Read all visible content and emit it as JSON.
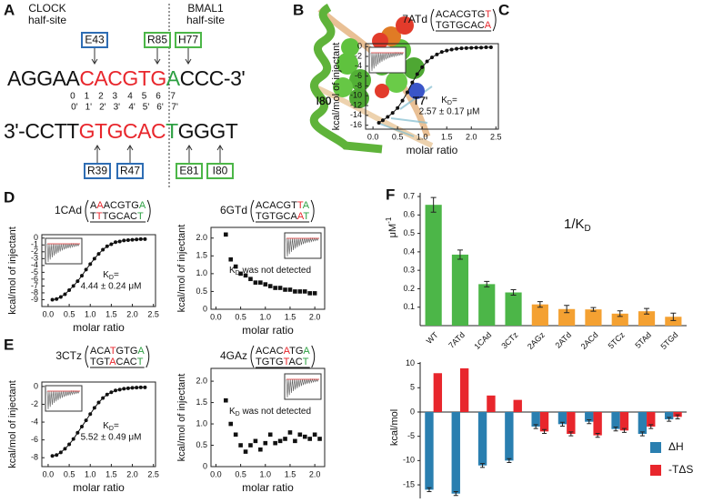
{
  "panel_labels": [
    "A",
    "B",
    "C",
    "D",
    "E",
    "F"
  ],
  "panel_a": {
    "clock": [
      "CLOCK",
      "half-site"
    ],
    "bmal": [
      "BMAL1",
      "half-site"
    ],
    "top_strand": [
      {
        "text": "AGGAA",
        "color": "#111111"
      },
      {
        "text": "CAC",
        "color": "#e8262c"
      },
      {
        "text": "GTG",
        "color": "#e8262c"
      },
      {
        "text": "A",
        "color": "#2ea043"
      },
      {
        "text": "CCC",
        "color": "#111111"
      },
      {
        "text": "-3'",
        "color": "#111111"
      }
    ],
    "bottom_strand": [
      {
        "text": "3'-",
        "color": "#111111"
      },
      {
        "text": "CCTT",
        "color": "#111111"
      },
      {
        "text": "GTG",
        "color": "#e8262c"
      },
      {
        "text": "CAC",
        "color": "#e8262c"
      },
      {
        "text": "T",
        "color": "#2ea043"
      },
      {
        "text": "GGGT",
        "color": "#111111"
      }
    ],
    "numbers": [
      "0",
      "1",
      "2",
      "3",
      "4",
      "5",
      "6",
      "7"
    ],
    "numbers_prime": [
      "0'",
      "1'",
      "2'",
      "3'",
      "4'",
      "5'",
      "6'",
      "7'"
    ],
    "top_residues": [
      {
        "label": "E43",
        "color": "#2e6db4"
      },
      {
        "label": "R85",
        "color": "#4cb648"
      },
      {
        "label": "H77",
        "color": "#4cb648"
      }
    ],
    "bottom_residues": [
      {
        "label": "R39",
        "color": "#2e6db4"
      },
      {
        "label": "R47",
        "color": "#2e6db4"
      },
      {
        "label": "E81",
        "color": "#4cb648"
      },
      {
        "label": "I80",
        "color": "#4cb648"
      }
    ]
  },
  "panel_b": {
    "labels": [
      "I80",
      "T7'"
    ]
  },
  "chart_data": [
    {
      "type": "scatter",
      "title": "7ATd",
      "seq_top": [
        {
          "text": "ACACGTG",
          "color": "#111111"
        },
        {
          "text": "T",
          "color": "#e8262c"
        }
      ],
      "seq_bottom": [
        {
          "text": "TGTGCAC",
          "color": "#111111"
        },
        {
          "text": "A",
          "color": "#e8262c"
        }
      ],
      "xlabel": "molar ratio",
      "ylabel": "kcal/mol of injectant",
      "marker": "circle",
      "line": true,
      "color": "#111111",
      "x": [
        0.12,
        0.2,
        0.3,
        0.4,
        0.5,
        0.6,
        0.7,
        0.8,
        0.9,
        1.0,
        1.1,
        1.2,
        1.3,
        1.4,
        1.5,
        1.6,
        1.7,
        1.8,
        1.9,
        2.0,
        2.1,
        2.2,
        2.3,
        2.4
      ],
      "values": [
        -15.5,
        -15,
        -14.3,
        -13.5,
        -12.5,
        -11,
        -9.3,
        -7.3,
        -5.6,
        -4.2,
        -3,
        -2.2,
        -1.6,
        -1.1,
        -0.8,
        -0.6,
        -0.45,
        -0.35,
        -0.3,
        -0.25,
        -0.2,
        -0.2,
        -0.15,
        -0.15
      ],
      "xlim": [
        -0.15,
        2.55
      ],
      "ylim": [
        -16.8,
        0.6
      ],
      "xticks": [
        {
          "value": 0,
          "label": "0.0"
        },
        0.5,
        {
          "value": 1,
          "label": "1.0"
        },
        1.5,
        {
          "value": 2,
          "label": "2.0"
        },
        2.5
      ],
      "yticks": [
        0,
        -2,
        -4,
        -6,
        -8,
        -10,
        -12,
        -14,
        -16
      ],
      "annotation": {
        "k": "K",
        "sub": "D",
        "text": "=",
        "value": "2.57 ± 0.17 μM"
      }
    },
    {
      "type": "scatter",
      "title": "1CAd",
      "seq_top": [
        {
          "text": "A",
          "color": "#111111"
        },
        {
          "text": "A",
          "color": "#e8262c"
        },
        {
          "text": "ACGTG",
          "color": "#111111"
        },
        {
          "text": "A",
          "color": "#2ea043"
        }
      ],
      "seq_bottom": [
        {
          "text": "T",
          "color": "#111111"
        },
        {
          "text": "T",
          "color": "#e8262c"
        },
        {
          "text": "TGCAC",
          "color": "#111111"
        },
        {
          "text": "T",
          "color": "#2ea043"
        }
      ],
      "xlabel": "molar ratio",
      "ylabel": "kcal/mol of injectant",
      "marker": "circle",
      "line": true,
      "color": "#111111",
      "x": [
        0.1,
        0.2,
        0.3,
        0.4,
        0.5,
        0.6,
        0.7,
        0.8,
        0.9,
        1.0,
        1.1,
        1.2,
        1.3,
        1.4,
        1.5,
        1.6,
        1.7,
        1.8,
        1.9,
        2.0,
        2.1,
        2.2,
        2.3
      ],
      "values": [
        -9,
        -8.9,
        -8.6,
        -8.2,
        -7.6,
        -7,
        -6.3,
        -5.5,
        -4.6,
        -3.8,
        -3,
        -2.3,
        -1.7,
        -1.2,
        -0.9,
        -0.6,
        -0.5,
        -0.35,
        -0.3,
        -0.25,
        -0.2,
        -0.15,
        -0.15
      ],
      "xlim": [
        -0.15,
        2.55
      ],
      "ylim": [
        -10,
        0.5
      ],
      "xticks": [
        {
          "value": 0,
          "label": "0.0"
        },
        0.5,
        {
          "value": 1,
          "label": "1.0"
        },
        1.5,
        {
          "value": 2,
          "label": "2.0"
        },
        2.5
      ],
      "yticks": [
        0,
        -1,
        -2,
        -3,
        -4,
        -5,
        -6,
        -7,
        -8,
        -9
      ],
      "annotation": {
        "k": "K",
        "sub": "D",
        "text": "=",
        "value": "4.44 ± 0.24 μM"
      }
    },
    {
      "type": "scatter",
      "title": "6GTd",
      "seq_top": [
        {
          "text": "ACACGT",
          "color": "#111111"
        },
        {
          "text": "T",
          "color": "#e8262c"
        },
        {
          "text": "A",
          "color": "#2ea043"
        }
      ],
      "seq_bottom": [
        {
          "text": "TGTGCA",
          "color": "#111111"
        },
        {
          "text": "A",
          "color": "#e8262c"
        },
        {
          "text": "T",
          "color": "#2ea043"
        }
      ],
      "xlabel": "molar ratio",
      "ylabel": "kcal/mol of injectant",
      "marker": "square",
      "line": false,
      "color": "#111111",
      "x": [
        0.2,
        0.3,
        0.4,
        0.5,
        0.6,
        0.7,
        0.8,
        0.9,
        1.0,
        1.1,
        1.2,
        1.3,
        1.4,
        1.5,
        1.6,
        1.7,
        1.8,
        1.9,
        2.0
      ],
      "values": [
        2.1,
        1.4,
        1.2,
        1.0,
        0.95,
        0.85,
        0.75,
        0.75,
        0.7,
        0.65,
        0.6,
        0.6,
        0.55,
        0.55,
        0.5,
        0.5,
        0.5,
        0.45,
        0.45
      ],
      "xlim": [
        -0.1,
        2.2
      ],
      "ylim": [
        0,
        2.3
      ],
      "xticks": [
        {
          "value": 0,
          "label": "0.0"
        },
        0.5,
        {
          "value": 1,
          "label": "1.0"
        },
        1.5,
        {
          "value": 2,
          "label": "2.0"
        }
      ],
      "yticks": [
        0,
        0.5,
        {
          "value": 1,
          "label": "1.0"
        },
        1.5,
        {
          "value": 2,
          "label": "2.0"
        }
      ],
      "annotation": {
        "k": "K",
        "sub": "D",
        "text": " was not detected"
      }
    },
    {
      "type": "scatter",
      "title": "3CTz",
      "seq_top": [
        {
          "text": "ACA",
          "color": "#111111"
        },
        {
          "text": "T",
          "color": "#e8262c"
        },
        {
          "text": "GTG",
          "color": "#111111"
        },
        {
          "text": "A",
          "color": "#2ea043"
        }
      ],
      "seq_bottom": [
        {
          "text": "TGT",
          "color": "#111111"
        },
        {
          "text": "A",
          "color": "#e8262c"
        },
        {
          "text": "CAC",
          "color": "#111111"
        },
        {
          "text": "T",
          "color": "#2ea043"
        }
      ],
      "xlabel": "molar ratio",
      "ylabel": "kcal/mol of injectant",
      "marker": "circle",
      "line": true,
      "color": "#111111",
      "x": [
        0.1,
        0.2,
        0.3,
        0.4,
        0.5,
        0.6,
        0.7,
        0.8,
        0.9,
        1.0,
        1.1,
        1.2,
        1.3,
        1.4,
        1.5,
        1.6,
        1.7,
        1.8,
        1.9,
        2.0,
        2.1,
        2.2,
        2.3
      ],
      "values": [
        -7.8,
        -7.7,
        -7.4,
        -7,
        -6.5,
        -5.9,
        -5.2,
        -4.5,
        -3.8,
        -3.1,
        -2.4,
        -1.8,
        -1.3,
        -0.9,
        -0.65,
        -0.45,
        -0.35,
        -0.25,
        -0.2,
        -0.15,
        -0.12,
        -0.1,
        -0.1
      ],
      "xlim": [
        -0.15,
        2.55
      ],
      "ylim": [
        -9,
        0.5
      ],
      "xticks": [
        {
          "value": 0,
          "label": "0.0"
        },
        0.5,
        {
          "value": 1,
          "label": "1.0"
        },
        1.5,
        {
          "value": 2,
          "label": "2.0"
        },
        2.5
      ],
      "yticks": [
        0,
        -2,
        -4,
        -6,
        -8
      ],
      "annotation": {
        "k": "K",
        "sub": "D",
        "text": "=",
        "value": "5.52 ± 0.49 μM"
      }
    },
    {
      "type": "scatter",
      "title": "4GAz",
      "seq_top": [
        {
          "text": "ACAC",
          "color": "#111111"
        },
        {
          "text": "A",
          "color": "#e8262c"
        },
        {
          "text": "TG",
          "color": "#111111"
        },
        {
          "text": "A",
          "color": "#2ea043"
        }
      ],
      "seq_bottom": [
        {
          "text": "TGTG",
          "color": "#111111"
        },
        {
          "text": "T",
          "color": "#e8262c"
        },
        {
          "text": "AC",
          "color": "#111111"
        },
        {
          "text": "T",
          "color": "#2ea043"
        }
      ],
      "xlabel": "molar ratio",
      "ylabel": "kcal/mol of injectant",
      "marker": "square",
      "line": false,
      "color": "#111111",
      "x": [
        0.2,
        0.3,
        0.4,
        0.5,
        0.6,
        0.7,
        0.8,
        0.9,
        1.0,
        1.1,
        1.2,
        1.3,
        1.4,
        1.5,
        1.6,
        1.7,
        1.8,
        1.9,
        2.0,
        2.1
      ],
      "values": [
        1.55,
        1.0,
        0.75,
        0.5,
        0.35,
        0.5,
        0.6,
        0.4,
        0.55,
        0.75,
        0.55,
        0.6,
        0.65,
        0.8,
        0.6,
        0.75,
        0.7,
        0.65,
        0.75,
        0.65
      ],
      "xlim": [
        -0.1,
        2.2
      ],
      "ylim": [
        0,
        2.3
      ],
      "xticks": [
        {
          "value": 0,
          "label": "0.0"
        },
        0.5,
        {
          "value": 1,
          "label": "1.0"
        },
        1.5,
        {
          "value": 2,
          "label": "2.0"
        }
      ],
      "yticks": [
        0,
        0.5,
        {
          "value": 1,
          "label": "1.0"
        },
        1.5,
        {
          "value": 2,
          "label": "2.0"
        }
      ],
      "annotation": {
        "k": "K",
        "sub": "D",
        "text": " was not detected"
      }
    },
    {
      "type": "bar",
      "title": "1/K",
      "title_sub": "D",
      "ylabel": "μM",
      "ylabel_sup": "-1",
      "categories": [
        "WT",
        "7ATd",
        "1CAd",
        "3CTz",
        "2AGz",
        "2ATd",
        "2ACd",
        "5TCz",
        "5TAd",
        "5TGd"
      ],
      "values": [
        0.655,
        0.385,
        0.225,
        0.18,
        0.115,
        0.09,
        0.088,
        0.065,
        0.078,
        0.048
      ],
      "errors": [
        0.04,
        0.025,
        0.015,
        0.015,
        0.015,
        0.02,
        0.01,
        0.015,
        0.015,
        0.02
      ],
      "colors": [
        "#4cb648",
        "#4cb648",
        "#4cb648",
        "#4cb648",
        "#f4a132",
        "#f4a132",
        "#f4a132",
        "#f4a132",
        "#f4a132",
        "#f4a132"
      ],
      "ylim": [
        0,
        0.72
      ],
      "yticks": [
        0.1,
        0.2,
        0.3,
        0.4,
        0.5,
        0.6,
        0.7
      ]
    },
    {
      "type": "grouped_bar",
      "ylabel": "kcal/mol",
      "legend": "lower right",
      "categories": [
        "WT",
        "7ATd",
        "1CAd",
        "3CTz",
        "2AGz",
        "2ATd",
        "2ACd",
        "5TCz",
        "5TAd",
        "5TGd"
      ],
      "series": [
        {
          "name": "ΔH",
          "color": "#2a7fb0",
          "values": [
            -16,
            -16.8,
            -11,
            -10,
            -3,
            -2.5,
            -2,
            -3.5,
            -4.5,
            -1.5
          ],
          "errors": [
            0.4,
            0.4,
            0.4,
            0.4,
            0.4,
            0.4,
            0.4,
            0.4,
            0.4,
            0.4
          ]
        },
        {
          "name": "-TΔS",
          "color": "#e8262c",
          "values": [
            8,
            9,
            3.4,
            2.5,
            -4,
            -4.5,
            -4.8,
            -3.8,
            -3,
            -1
          ],
          "errors": [
            0,
            0,
            0,
            0,
            0.4,
            0.4,
            0.4,
            0.4,
            0.4,
            0.4
          ]
        }
      ],
      "ylim": [
        -17.8,
        10.3
      ],
      "yticks": [
        10,
        5,
        0,
        -5,
        -10,
        -15
      ]
    }
  ]
}
